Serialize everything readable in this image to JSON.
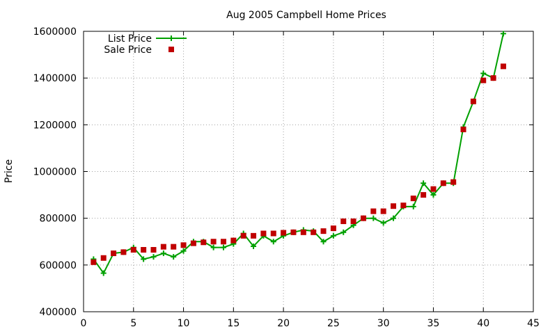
{
  "chart_data": {
    "type": "line",
    "title": "Aug 2005 Campbell Home Prices",
    "xlabel": "",
    "ylabel": "Price",
    "xlim": [
      0,
      45
    ],
    "ylim": [
      400000,
      1600000
    ],
    "xticks": [
      0,
      5,
      10,
      15,
      20,
      25,
      30,
      35,
      40,
      45
    ],
    "yticks": [
      400000,
      600000,
      800000,
      1000000,
      1200000,
      1400000,
      1600000
    ],
    "grid": true,
    "legend_position": "top-left",
    "series": [
      {
        "name": "List Price",
        "style": "line-plus",
        "color": "#00a000",
        "x": [
          1,
          2,
          3,
          4,
          5,
          6,
          7,
          8,
          9,
          10,
          11,
          12,
          13,
          14,
          15,
          16,
          17,
          18,
          19,
          20,
          21,
          22,
          23,
          24,
          25,
          26,
          27,
          28,
          29,
          30,
          31,
          32,
          33,
          34,
          35,
          36,
          37,
          38,
          39,
          40,
          41,
          42
        ],
        "y": [
          625000,
          565000,
          650000,
          655000,
          675000,
          625000,
          635000,
          650000,
          635000,
          660000,
          700000,
          700000,
          675000,
          675000,
          690000,
          735000,
          680000,
          725000,
          700000,
          725000,
          740000,
          750000,
          745000,
          700000,
          725000,
          740000,
          770000,
          800000,
          800000,
          780000,
          800000,
          850000,
          850000,
          950000,
          900000,
          950000,
          950000,
          1190000,
          1300000,
          1420000,
          1400000,
          1590000
        ]
      },
      {
        "name": "Sale Price",
        "style": "square-markers",
        "color": "#c00000",
        "x": [
          1,
          2,
          3,
          4,
          5,
          6,
          7,
          8,
          9,
          10,
          11,
          12,
          13,
          14,
          15,
          16,
          17,
          18,
          19,
          20,
          21,
          22,
          23,
          24,
          25,
          26,
          27,
          28,
          29,
          30,
          31,
          32,
          33,
          34,
          35,
          36,
          37,
          38,
          39,
          40,
          41,
          42
        ],
        "y": [
          612000,
          630000,
          650000,
          655000,
          665000,
          665000,
          665000,
          678000,
          678000,
          685000,
          693000,
          697000,
          700000,
          700000,
          705000,
          725000,
          725000,
          735000,
          735000,
          738000,
          740000,
          740000,
          740000,
          745000,
          757000,
          787000,
          787000,
          800000,
          830000,
          830000,
          852000,
          855000,
          885000,
          900000,
          925000,
          950000,
          955000,
          1180000,
          1300000,
          1390000,
          1400000,
          1450000
        ]
      }
    ]
  }
}
